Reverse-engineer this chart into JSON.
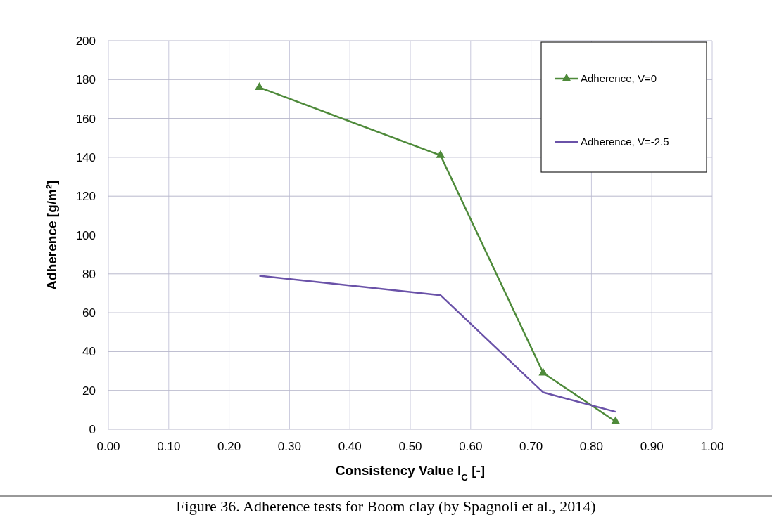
{
  "chart_data": {
    "type": "line",
    "xlabel": "Consistency Value I$_{C}$ [-]",
    "ylabel": "Adherence [g/m²]",
    "x": [
      0.25,
      0.55,
      0.72,
      0.84
    ],
    "series": [
      {
        "name": "Adherence, V=0",
        "color": "#4e8a3a",
        "values": [
          176,
          141,
          29,
          4
        ],
        "marker": "triangle"
      },
      {
        "name": "Adherence, V=-2.5",
        "color": "#6a52a8",
        "values": [
          79,
          69,
          19,
          9
        ],
        "marker": "none"
      }
    ],
    "xlim": [
      0,
      1
    ],
    "xticks": [
      {
        "value": 0,
        "label": "0.00"
      },
      {
        "value": 0.1,
        "label": "0.10"
      },
      {
        "value": 0.2,
        "label": "0.20"
      },
      {
        "value": 0.3,
        "label": "0.30"
      },
      {
        "value": 0.4,
        "label": "0.40"
      },
      {
        "value": 0.5,
        "label": "0.50"
      },
      {
        "value": 0.6,
        "label": "0.60"
      },
      {
        "value": 0.7,
        "label": "0.70"
      },
      {
        "value": 0.8,
        "label": "0.80"
      },
      {
        "value": 0.9,
        "label": "0.90"
      },
      {
        "value": 1,
        "label": "1.00"
      }
    ],
    "ylim": [
      0,
      200
    ],
    "yticks": [
      0,
      20,
      40,
      60,
      80,
      100,
      120,
      140,
      160,
      180,
      200
    ],
    "grid": true,
    "legend": "top right",
    "line_style": "solid",
    "annotations": [
      "Figure 36. Adherence tests for Boom clay (by Spagnoli et al., 2014)"
    ]
  }
}
